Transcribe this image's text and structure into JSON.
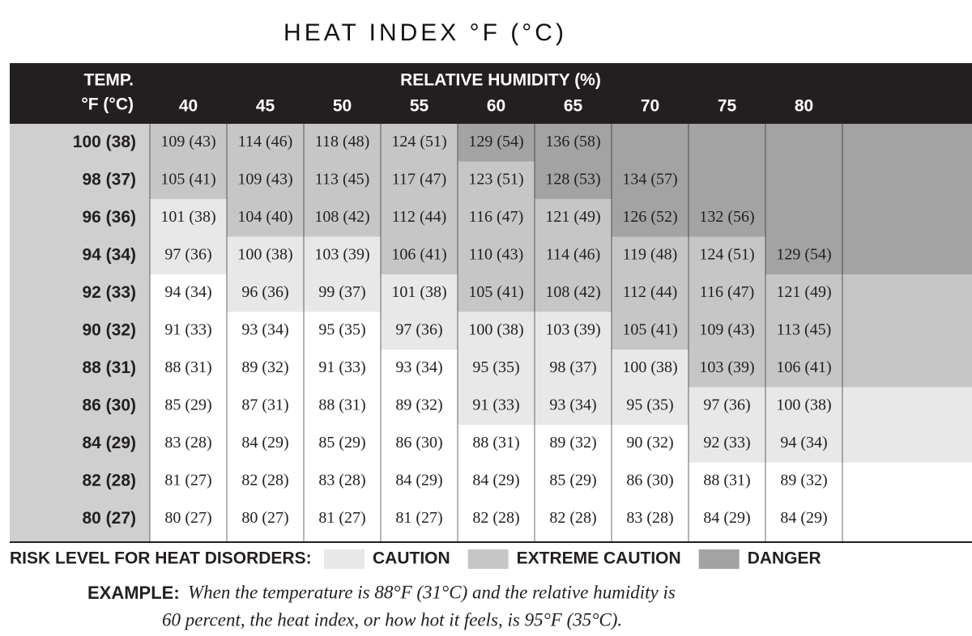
{
  "title": "HEAT INDEX °F (°C)",
  "table": {
    "corner": [
      "TEMP.",
      "°F (°C)"
    ],
    "humidity_label": "RELATIVE HUMIDITY (%)",
    "columns": [
      40,
      45,
      50,
      55,
      60,
      65,
      70,
      75,
      80
    ],
    "rows": [
      {
        "label": "100 (38)",
        "cells": [
          "109 (43)",
          "114 (46)",
          "118 (48)",
          "124 (51)",
          "129 (54)",
          "136 (58)",
          null,
          null,
          null
        ],
        "levels": [
          2,
          2,
          2,
          2,
          3,
          3,
          3,
          3,
          3
        ]
      },
      {
        "label": "98 (37)",
        "cells": [
          "105 (41)",
          "109 (43)",
          "113 (45)",
          "117 (47)",
          "123 (51)",
          "128 (53)",
          "134 (57)",
          null,
          null
        ],
        "levels": [
          2,
          2,
          2,
          2,
          2,
          3,
          3,
          3,
          3
        ]
      },
      {
        "label": "96 (36)",
        "cells": [
          "101 (38)",
          "104 (40)",
          "108 (42)",
          "112 (44)",
          "116 (47)",
          "121 (49)",
          "126 (52)",
          "132 (56)",
          null
        ],
        "levels": [
          1,
          2,
          2,
          2,
          2,
          2,
          3,
          3,
          3
        ]
      },
      {
        "label": "94 (34)",
        "cells": [
          "97 (36)",
          "100 (38)",
          "103 (39)",
          "106 (41)",
          "110 (43)",
          "114 (46)",
          "119 (48)",
          "124 (51)",
          "129 (54)"
        ],
        "levels": [
          1,
          1,
          1,
          2,
          2,
          2,
          2,
          2,
          3
        ]
      },
      {
        "label": "92 (33)",
        "cells": [
          "94 (34)",
          "96 (36)",
          "99 (37)",
          "101 (38)",
          "105 (41)",
          "108 (42)",
          "112 (44)",
          "116 (47)",
          "121 (49)"
        ],
        "levels": [
          0,
          1,
          1,
          1,
          2,
          2,
          2,
          2,
          2
        ]
      },
      {
        "label": "90 (32)",
        "cells": [
          "91 (33)",
          "93 (34)",
          "95 (35)",
          "97 (36)",
          "100 (38)",
          "103 (39)",
          "105 (41)",
          "109 (43)",
          "113 (45)"
        ],
        "levels": [
          0,
          0,
          0,
          1,
          1,
          1,
          2,
          2,
          2
        ]
      },
      {
        "label": "88 (31)",
        "cells": [
          "88 (31)",
          "89 (32)",
          "91 (33)",
          "93 (34)",
          "95 (35)",
          "98 (37)",
          "100 (38)",
          "103 (39)",
          "106 (41)"
        ],
        "levels": [
          0,
          0,
          0,
          0,
          1,
          1,
          1,
          2,
          2
        ]
      },
      {
        "label": "86 (30)",
        "cells": [
          "85 (29)",
          "87 (31)",
          "88 (31)",
          "89 (32)",
          "91 (33)",
          "93 (34)",
          "95 (35)",
          "97 (36)",
          "100 (38)"
        ],
        "levels": [
          0,
          0,
          0,
          0,
          1,
          1,
          1,
          1,
          1
        ]
      },
      {
        "label": "84 (29)",
        "cells": [
          "83 (28)",
          "84 (29)",
          "85 (29)",
          "86 (30)",
          "88 (31)",
          "89 (32)",
          "90 (32)",
          "92 (33)",
          "94 (34)"
        ],
        "levels": [
          0,
          0,
          0,
          0,
          0,
          0,
          0,
          1,
          1
        ]
      },
      {
        "label": "82 (28)",
        "cells": [
          "81 (27)",
          "82 (28)",
          "83 (28)",
          "84 (29)",
          "84 (29)",
          "85 (29)",
          "86 (30)",
          "88 (31)",
          "89 (32)"
        ],
        "levels": [
          0,
          0,
          0,
          0,
          0,
          0,
          0,
          0,
          0
        ]
      },
      {
        "label": "80 (27)",
        "cells": [
          "80 (27)",
          "80 (27)",
          "81 (27)",
          "81 (27)",
          "82 (28)",
          "82 (28)",
          "83 (28)",
          "84 (29)",
          "84 (29)"
        ],
        "levels": [
          0,
          0,
          0,
          0,
          0,
          0,
          0,
          0,
          0
        ]
      }
    ]
  },
  "legend": {
    "label": "RISK LEVEL FOR HEAT DISORDERS:",
    "items": [
      {
        "name": "CAUTION",
        "color": "#e8e8e8"
      },
      {
        "name": "EXTREME CAUTION",
        "color": "#c6c6c6"
      },
      {
        "name": "DANGER",
        "color": "#a3a3a3"
      }
    ]
  },
  "example": {
    "label": "EXAMPLE:",
    "lines": [
      "When the temperature is 88°F (31°C) and the relative humidity is",
      "60 percent, the heat index, or how hot it feels, is 95°F (35°C)."
    ]
  }
}
